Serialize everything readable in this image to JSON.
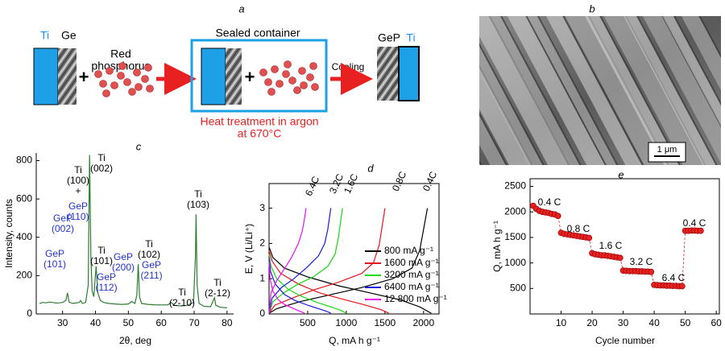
{
  "scheme": {
    "panel": "a",
    "ti": "Ti",
    "ge": "Ge",
    "plus": "+",
    "red_phosphorus": [
      "Red",
      "phosphorus"
    ],
    "container": "Sealed container",
    "heat": [
      "Heat treatment in argon",
      "at 670°C"
    ],
    "cooling": "Cooling",
    "gep": "GeP"
  },
  "micrograph": {
    "panel": "b",
    "scale_bar": "1 μm"
  },
  "chart_data": [
    {
      "type": "line",
      "panel": "c",
      "xlabel": "2θ, deg",
      "ylabel": "Intensity, counts",
      "xlim": [
        22,
        82
      ],
      "ylim": [
        0,
        840
      ],
      "xticks": [
        30,
        40,
        50,
        60,
        70,
        80
      ],
      "yticks": [
        0,
        200,
        400,
        600,
        800
      ],
      "series": [
        {
          "color": "#2e7d32",
          "x": [
            23,
            24,
            25,
            26,
            27,
            28,
            29,
            30,
            31,
            31.5,
            32,
            33,
            34,
            35,
            35.5,
            36,
            37,
            37.8,
            38.2,
            38.6,
            39,
            39.5,
            40.2,
            40.7,
            41.5,
            42.5,
            44,
            46,
            48,
            50,
            51,
            52,
            52.6,
            53,
            53.4,
            54,
            56,
            58,
            60,
            62,
            63,
            64,
            66,
            68,
            69.8,
            70.4,
            70.6,
            70.9,
            71.5,
            73,
            75,
            76.2,
            76.6,
            78,
            80
          ],
          "values": [
            55,
            60,
            58,
            62,
            60,
            57,
            58,
            60,
            70,
            110,
            62,
            55,
            57,
            60,
            70,
            55,
            60,
            150,
            830,
            300,
            120,
            90,
            250,
            110,
            70,
            60,
            55,
            52,
            50,
            52,
            65,
            55,
            100,
            260,
            90,
            55,
            50,
            48,
            47,
            48,
            60,
            45,
            42,
            45,
            60,
            300,
            520,
            150,
            55,
            40,
            38,
            85,
            45,
            35,
            32
          ]
        }
      ],
      "annotations": [
        {
          "lines": [
            "GeP",
            "(101)"
          ],
          "color": "#2233cc"
        },
        {
          "lines": [
            "GeP",
            "(002)"
          ],
          "color": "#2233cc"
        },
        {
          "lines": [
            "Ti",
            "(100)",
            "+"
          ],
          "color": "#000000"
        },
        {
          "lines": [
            "GeP",
            "(110)"
          ],
          "color": "#2233cc"
        },
        {
          "lines": [
            "Ti",
            "(002)"
          ],
          "color": "#000000"
        },
        {
          "lines": [
            "Ti",
            "(101)"
          ],
          "color": "#000000"
        },
        {
          "lines": [
            "GeP",
            "(112)"
          ],
          "color": "#2233cc"
        },
        {
          "lines": [
            "GeP",
            "(200)"
          ],
          "color": "#2233cc"
        },
        {
          "lines": [
            "Ti",
            "(102)"
          ],
          "color": "#000000"
        },
        {
          "lines": [
            "GeP",
            "(211)"
          ],
          "color": "#2233cc"
        },
        {
          "lines": [
            "Ti",
            "(2-10)"
          ],
          "color": "#000000"
        },
        {
          "lines": [
            "Ti",
            "(103)"
          ],
          "color": "#000000"
        },
        {
          "lines": [
            "Ti",
            "(2-12)"
          ],
          "color": "#000000"
        }
      ]
    },
    {
      "type": "line",
      "panel": "d",
      "xlabel": "Q, mA h g⁻¹",
      "ylabel": "E, V (Li/Li⁺)",
      "xlim": [
        0,
        2200
      ],
      "ylim": [
        0,
        3.7
      ],
      "xticks": [
        500,
        1000,
        1500,
        2000
      ],
      "yticks": [
        0,
        1,
        2,
        3
      ],
      "legend": "lower right",
      "series": [
        {
          "name": "800 mA g⁻¹",
          "color": "#000000",
          "curves": [
            {
              "x": [
                0,
                100,
                400,
                800,
                1200,
                1600,
                1850,
                1950,
                2050
              ],
              "values": [
                0.02,
                0.15,
                0.35,
                0.55,
                0.75,
                1.0,
                1.3,
                1.8,
                3.0
              ]
            },
            {
              "x": [
                0,
                50,
                200,
                500,
                900,
                1300,
                1700,
                1950,
                2100
              ],
              "values": [
                1.9,
                1.6,
                1.3,
                1.05,
                0.8,
                0.6,
                0.4,
                0.2,
                0.02
              ]
            }
          ]
        },
        {
          "name": "1600 mA g⁻¹",
          "color": "#e8141c",
          "curves": [
            {
              "x": [
                0,
                75,
                300,
                600,
                900,
                1200,
                1350,
                1425,
                1500
              ],
              "values": [
                0.02,
                0.25,
                0.45,
                0.7,
                0.9,
                1.15,
                1.45,
                1.95,
                3.0
              ]
            },
            {
              "x": [
                0,
                40,
                150,
                380,
                650,
                950,
                1250,
                1450,
                1550
              ],
              "values": [
                1.8,
                1.5,
                1.15,
                0.85,
                0.6,
                0.42,
                0.25,
                0.12,
                0.02
              ]
            }
          ]
        },
        {
          "name": "3200 mA g⁻¹",
          "color": "#13d813",
          "curves": [
            {
              "x": [
                0,
                50,
                190,
                380,
                570,
                760,
                855,
                900,
                950
              ],
              "values": [
                0.02,
                0.35,
                0.6,
                0.85,
                1.05,
                1.35,
                1.7,
                2.2,
                3.0
              ]
            },
            {
              "x": [
                0,
                25,
                100,
                250,
                420,
                620,
                800,
                930,
                1000
              ],
              "values": [
                1.7,
                1.35,
                1.0,
                0.7,
                0.5,
                0.33,
                0.2,
                0.1,
                0.02
              ]
            }
          ]
        },
        {
          "name": "6400 mA g⁻¹",
          "color": "#1a1adc",
          "curves": [
            {
              "x": [
                0,
                40,
                160,
                320,
                480,
                640,
                720,
                760,
                800
              ],
              "values": [
                0.02,
                0.45,
                0.75,
                1.0,
                1.3,
                1.65,
                2.0,
                2.4,
                3.0
              ]
            },
            {
              "x": [
                0,
                20,
                80,
                200,
                340,
                500,
                640,
                740,
                800
              ],
              "values": [
                1.6,
                1.2,
                0.85,
                0.55,
                0.38,
                0.25,
                0.15,
                0.08,
                0.02
              ]
            }
          ]
        },
        {
          "name": "12 800 mA g⁻¹",
          "color": "#ee10ee",
          "curves": [
            {
              "x": [
                0,
                25,
                100,
                190,
                290,
                380,
                430,
                455,
                480
              ],
              "values": [
                0.02,
                0.6,
                0.95,
                1.25,
                1.6,
                2.0,
                2.35,
                2.65,
                3.0
              ]
            },
            {
              "x": [
                0,
                12,
                50,
                120,
                200,
                290,
                370,
                430,
                460
              ],
              "values": [
                1.5,
                1.0,
                0.65,
                0.4,
                0.27,
                0.18,
                0.1,
                0.05,
                0.02
              ]
            }
          ]
        }
      ],
      "annotations": [
        {
          "lines": [
            "6.4C"
          ],
          "color": "#000000"
        },
        {
          "lines": [
            "3.2C"
          ],
          "color": "#000000"
        },
        {
          "lines": [
            "1.6C"
          ],
          "color": "#000000"
        },
        {
          "lines": [
            "0.8C"
          ],
          "color": "#000000"
        },
        {
          "lines": [
            "0.4C"
          ],
          "color": "#000000"
        }
      ]
    },
    {
      "type": "scatter",
      "panel": "e",
      "xlabel": "Cycle number",
      "ylabel": "Q, mA h g⁻¹",
      "xlim": [
        0,
        61
      ],
      "ylim": [
        0,
        2650
      ],
      "xticks": [
        10,
        20,
        30,
        40,
        50,
        60
      ],
      "yticks": [
        500,
        1000,
        1500,
        2000,
        2500
      ],
      "line_style": "dashed",
      "series": [
        {
          "color": "#e82020",
          "x": [
            1,
            2,
            3,
            4,
            5,
            6,
            7,
            8,
            9,
            10,
            11,
            12,
            13,
            14,
            15,
            16,
            17,
            18,
            19,
            20,
            21,
            22,
            23,
            24,
            25,
            26,
            27,
            28,
            29,
            30,
            31,
            32,
            33,
            34,
            35,
            36,
            37,
            38,
            39,
            40,
            41,
            42,
            43,
            44,
            45,
            46,
            47,
            48,
            49,
            50,
            51,
            52,
            53,
            54,
            55
          ],
          "values": [
            2120,
            2060,
            2020,
            2000,
            1990,
            1980,
            1960,
            1950,
            1920,
            1590,
            1570,
            1560,
            1550,
            1540,
            1530,
            1520,
            1510,
            1500,
            1490,
            1190,
            1170,
            1160,
            1150,
            1150,
            1140,
            1130,
            1120,
            1110,
            1100,
            850,
            845,
            840,
            840,
            840,
            835,
            835,
            830,
            830,
            825,
            570,
            565,
            560,
            560,
            555,
            555,
            550,
            550,
            545,
            545,
            1630,
            1630,
            1635,
            1635,
            1630,
            1630
          ]
        }
      ],
      "annotations": [
        {
          "lines": [
            "0.4 C"
          ],
          "color": "#000000"
        },
        {
          "lines": [
            "0.8 C"
          ],
          "color": "#000000"
        },
        {
          "lines": [
            "1.6 C"
          ],
          "color": "#000000"
        },
        {
          "lines": [
            "3.2 C"
          ],
          "color": "#000000"
        },
        {
          "lines": [
            "6.4 C"
          ],
          "color": "#000000"
        },
        {
          "lines": [
            "0.4 C"
          ],
          "color": "#000000"
        }
      ]
    }
  ]
}
